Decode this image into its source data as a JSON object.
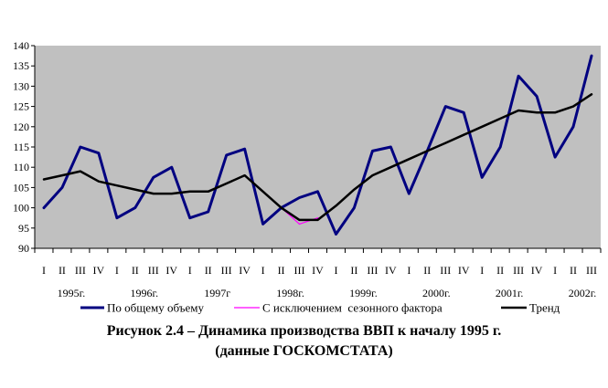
{
  "chart_data": {
    "type": "line",
    "title": "Рисунок 2.4 – Динамика производства ВВП к началу 1995 г.",
    "subtitle": "(данные ГОСКОМСТАТА)",
    "xlabel": "",
    "ylabel": "",
    "ylim": [
      90,
      140
    ],
    "yticks": [
      90,
      95,
      100,
      105,
      110,
      115,
      120,
      125,
      130,
      135,
      140
    ],
    "grid": false,
    "legend_position": "bottom",
    "categories": [
      "I",
      "II",
      "III",
      "IV",
      "I",
      "II",
      "III",
      "IV",
      "I",
      "II",
      "III",
      "IV",
      "I",
      "II",
      "III",
      "IV",
      "I",
      "II",
      "III",
      "IV",
      "I",
      "II",
      "III",
      "IV",
      "I",
      "II",
      "III",
      "IV",
      "I",
      "II",
      "III"
    ],
    "year_labels": [
      "1995г.",
      "1996г.",
      "1997г",
      "1998г.",
      "1999г.",
      "2000г.",
      "2001г.",
      "2002г."
    ],
    "series": [
      {
        "name": "По общему объему",
        "color": "#000080",
        "values": [
          100,
          105,
          115,
          113.5,
          97.5,
          100,
          107.5,
          110,
          97.5,
          99,
          113,
          114.5,
          96,
          100,
          102.5,
          104,
          93.5,
          100,
          114,
          115,
          103.5,
          114,
          125,
          123.5,
          107.5,
          115,
          132.5,
          127.5,
          112.5,
          120,
          137.5
        ]
      },
      {
        "name": "С исключением  сезонного фактора",
        "color": "#ff00ff",
        "values": [
          null,
          null,
          null,
          null,
          null,
          null,
          null,
          null,
          null,
          null,
          null,
          null,
          null,
          100,
          96,
          97.5,
          null,
          null,
          null,
          null,
          null,
          null,
          null,
          null,
          null,
          null,
          null,
          null,
          null,
          null,
          null
        ]
      },
      {
        "name": "Тренд",
        "color": "#000000",
        "values": [
          107,
          108,
          109,
          106.5,
          105.5,
          104.5,
          103.5,
          103.5,
          104,
          104,
          106,
          108,
          104,
          100,
          97,
          97,
          100.5,
          104.5,
          108,
          110,
          112,
          114,
          116,
          118,
          120,
          122,
          124,
          123.5,
          123.5,
          125,
          128
        ]
      }
    ]
  }
}
